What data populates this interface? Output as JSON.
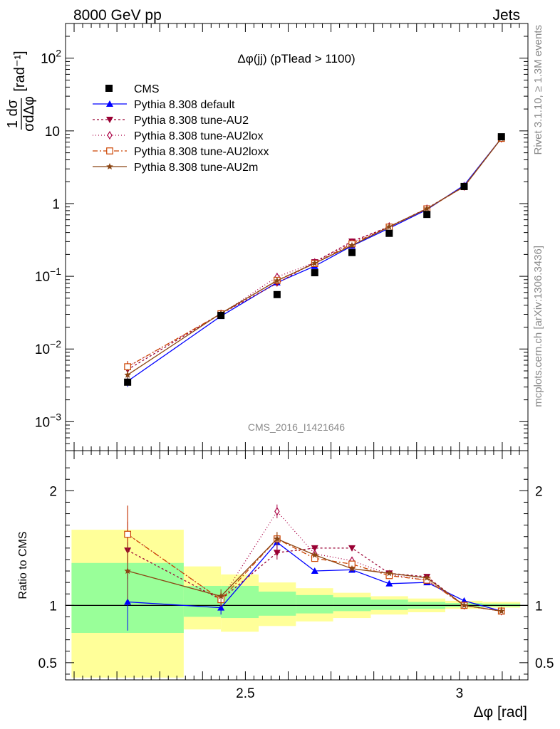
{
  "header": {
    "left": "8000 GeV pp",
    "right": "Jets"
  },
  "side_labels": {
    "rivet": "Rivet 3.1.10, ≥ 1.3M events",
    "mcplots": "mcplots.cern.ch [arXiv:1306.3436]"
  },
  "chart_data": [
    {
      "type": "line",
      "title": "Δφ(jj) (pTlead >  1100)",
      "analysis_label": "CMS_2016_I1421646",
      "ylabel": "1/σ dσ/dΔφ [rad⁻¹]",
      "yscale": "log",
      "xlim": [
        2.08,
        3.16
      ],
      "ylim": [
        0.0004,
        300
      ],
      "yticks": [
        {
          "value": 0.001,
          "base": "10",
          "exp": "−3"
        },
        {
          "value": 0.01,
          "base": "10",
          "exp": "−2"
        },
        {
          "value": 0.1,
          "base": "10",
          "exp": "−1"
        },
        {
          "value": 1,
          "base": "1",
          "exp": ""
        },
        {
          "value": 10,
          "base": "10",
          "exp": ""
        },
        {
          "value": 100,
          "base": "10",
          "exp": "2"
        }
      ],
      "legend_position": "top-left",
      "x": [
        2.225,
        2.443,
        2.574,
        2.662,
        2.749,
        2.836,
        2.924,
        3.011,
        3.098
      ],
      "data": {
        "name": "CMS",
        "color": "#000000",
        "values": [
          0.0035,
          0.029,
          0.056,
          0.112,
          0.212,
          0.39,
          0.71,
          1.72,
          8.3
        ]
      },
      "series": [
        {
          "name": "Pythia 8.308 default",
          "color": "#0000ff",
          "marker": "triangle-up",
          "dash": "solid",
          "values": [
            0.0036,
            0.0283,
            0.082,
            0.138,
            0.262,
            0.458,
            0.828,
            1.79,
            7.9
          ]
        },
        {
          "name": "Pythia 8.308 tune-AU2",
          "color": "#990033",
          "marker": "triangle-down",
          "dash": "3,3",
          "values": [
            0.0052,
            0.0305,
            0.08,
            0.157,
            0.302,
            0.48,
            0.86,
            1.73,
            7.9
          ]
        },
        {
          "name": "Pythia 8.308 tune-AU2lox",
          "color": "#aa0044",
          "marker": "diamond-open",
          "dash": "1,3",
          "values": [
            0.0057,
            0.0305,
            0.098,
            0.155,
            0.291,
            0.485,
            0.85,
            1.72,
            7.9
          ]
        },
        {
          "name": "Pythia 8.308 tune-AU2loxx",
          "color": "#cc4400",
          "marker": "square-open",
          "dash": "7,3,2,3",
          "values": [
            0.0057,
            0.0305,
            0.088,
            0.15,
            0.28,
            0.475,
            0.845,
            1.71,
            7.9
          ]
        },
        {
          "name": "Pythia 8.308 tune-AU2m",
          "color": "#8b4513",
          "marker": "star",
          "dash": "solid",
          "values": [
            0.0044,
            0.031,
            0.087,
            0.151,
            0.266,
            0.48,
            0.85,
            1.72,
            7.9
          ]
        }
      ]
    },
    {
      "type": "line",
      "ylabel": "Ratio to CMS",
      "xlabel": "Δφ [rad]",
      "xlim": [
        2.08,
        3.16
      ],
      "ylim": [
        0.35,
        2.35
      ],
      "xticks": [
        2.5,
        3
      ],
      "xtick_labels": [
        "2.5",
        "3"
      ],
      "yticks": [
        0.5,
        1,
        2
      ],
      "ytick_labels": [
        "0.5",
        "1",
        "2"
      ],
      "bands": {
        "edges": [
          2.094,
          2.356,
          2.443,
          2.531,
          2.618,
          2.705,
          2.793,
          2.88,
          2.967,
          3.054,
          3.142
        ],
        "yellow": [
          [
            0.37,
            1.66
          ],
          [
            0.79,
            1.34
          ],
          [
            0.77,
            1.27
          ],
          [
            0.82,
            1.2
          ],
          [
            0.86,
            1.15
          ],
          [
            0.89,
            1.11
          ],
          [
            0.92,
            1.08
          ],
          [
            0.94,
            1.06
          ],
          [
            0.97,
            1.04
          ],
          [
            0.98,
            1.03
          ]
        ],
        "green": [
          [
            0.76,
            1.37
          ],
          [
            0.9,
            1.17
          ],
          [
            0.89,
            1.17
          ],
          [
            0.91,
            1.12
          ],
          [
            0.93,
            1.09
          ],
          [
            0.95,
            1.07
          ],
          [
            0.96,
            1.05
          ],
          [
            0.97,
            1.03
          ],
          [
            0.985,
            1.02
          ],
          [
            0.99,
            1.015
          ]
        ],
        "green_color": "#99ff99",
        "yellow_color": "#ffff99"
      },
      "series": [
        {
          "name": "Pythia 8.308 default",
          "values": [
            1.03,
            0.98,
            1.55,
            1.3,
            1.31,
            1.19,
            1.2,
            1.04,
            0.95
          ]
        },
        {
          "name": "Pythia 8.308 tune-AU2",
          "values": [
            1.48,
            1.05,
            1.46,
            1.5,
            1.5,
            1.28,
            1.25,
            1.0,
            0.95
          ]
        },
        {
          "name": "Pythia 8.308 tune-AU2lox",
          "values": [
            1.62,
            1.05,
            1.82,
            1.45,
            1.39,
            1.27,
            1.22,
            1.0,
            0.95
          ]
        },
        {
          "name": "Pythia 8.308 tune-AU2loxx",
          "values": [
            1.62,
            1.05,
            1.58,
            1.41,
            1.36,
            1.26,
            1.22,
            1.0,
            0.95
          ]
        },
        {
          "name": "Pythia 8.308 tune-AU2m",
          "values": [
            1.3,
            1.08,
            1.58,
            1.44,
            1.32,
            1.28,
            1.24,
            1.0,
            0.95
          ]
        }
      ]
    }
  ]
}
